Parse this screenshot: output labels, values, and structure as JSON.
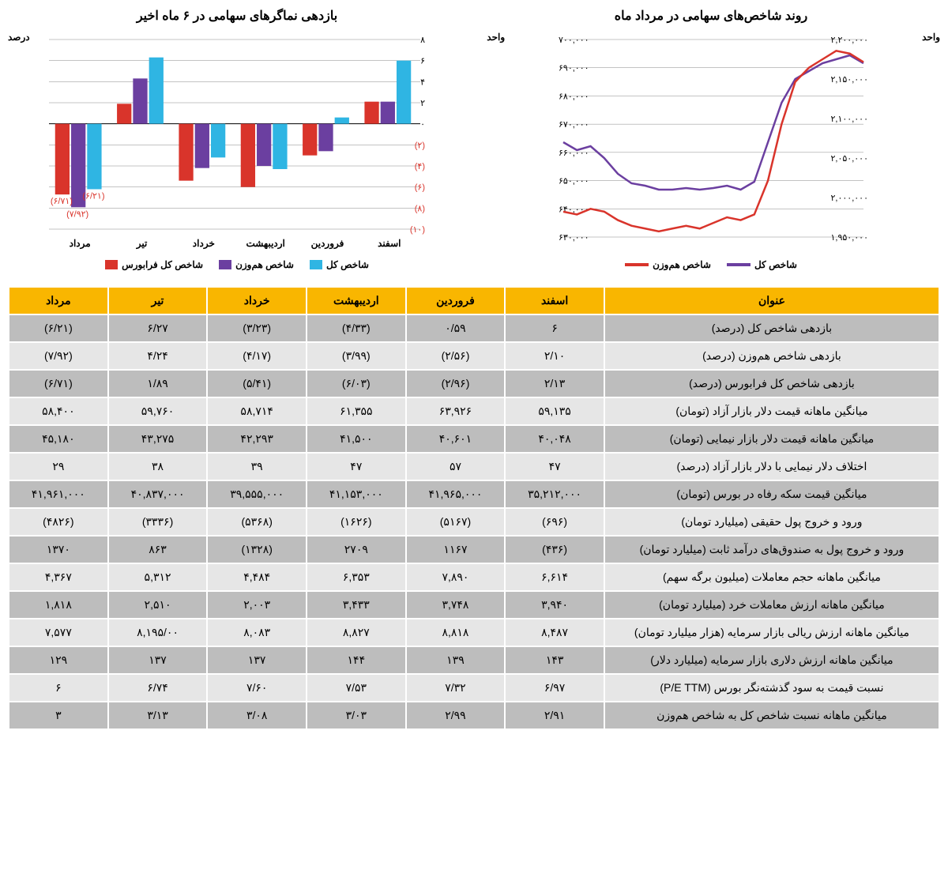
{
  "line_chart": {
    "title": "روند شاخص‌های سهامی در مرداد ماه",
    "left_axis_label": "واحد",
    "right_axis_label": "واحد",
    "right_ticks": [
      "۶۳۰,۰۰۰",
      "۶۴۰,۰۰۰",
      "۶۵۰,۰۰۰",
      "۶۶۰,۰۰۰",
      "۶۷۰,۰۰۰",
      "۶۸۰,۰۰۰",
      "۶۹۰,۰۰۰",
      "۷۰۰,۰۰۰"
    ],
    "left_ticks": [
      "۱,۹۵۰,۰۰۰",
      "۲,۰۰۰,۰۰۰",
      "۲,۰۵۰,۰۰۰",
      "۲,۱۰۰,۰۰۰",
      "۲,۱۵۰,۰۰۰",
      "۲,۲۰۰,۰۰۰"
    ],
    "right_min": 630000,
    "right_max": 700000,
    "left_min": 1950000,
    "left_max": 2200000,
    "series": [
      {
        "name": "شاخص کل",
        "color": "#6b3fa0",
        "axis": "left",
        "values": [
          2170000,
          2180000,
          2175000,
          2170000,
          2160000,
          2150000,
          2120000,
          2070000,
          2020000,
          2010000,
          2015000,
          2012000,
          2010000,
          2012000,
          2010000,
          2010000,
          2015000,
          2018000,
          2030000,
          2050000,
          2065000,
          2060000,
          2070000
        ]
      },
      {
        "name": "شاخص هم‌وزن",
        "color": "#d9342b",
        "axis": "right",
        "values": [
          692000,
          695000,
          696000,
          693000,
          690000,
          685000,
          670000,
          650000,
          638000,
          636000,
          637000,
          635000,
          633000,
          634000,
          633000,
          632000,
          633000,
          634000,
          636000,
          639000,
          640000,
          638000,
          639000
        ]
      }
    ],
    "legend": [
      {
        "label": "شاخص کل",
        "color": "#6b3fa0"
      },
      {
        "label": "شاخص هم‌وزن",
        "color": "#d9342b"
      }
    ]
  },
  "bar_chart": {
    "title": "بازدهی نماگرهای سهامی در ۶ ماه اخیر",
    "y_label": "درصد",
    "y_ticks_pos": [
      "۰",
      "۲",
      "۴",
      "۶",
      "۸"
    ],
    "y_ticks_neg": [
      "(۲)",
      "(۴)",
      "(۶)",
      "(۸)",
      "(۱۰)"
    ],
    "y_min": -10,
    "y_max": 8,
    "categories": [
      "اسفند",
      "فروردین",
      "اردیبهشت",
      "خرداد",
      "تیر",
      "مرداد"
    ],
    "series": [
      {
        "name": "شاخص کل",
        "color": "#2fb5e3",
        "values": [
          6.0,
          0.6,
          -4.3,
          -3.2,
          6.3,
          -6.21
        ]
      },
      {
        "name": "شاخص هم‌وزن",
        "color": "#6b3fa0",
        "values": [
          2.1,
          -2.6,
          -4.0,
          -4.2,
          4.3,
          -7.92
        ]
      },
      {
        "name": "شاخص کل فرابورس",
        "color": "#d9342b",
        "values": [
          2.1,
          -3.0,
          -6.0,
          -5.4,
          1.9,
          -6.71
        ]
      }
    ],
    "annotations": [
      {
        "text": "(۶/۲۱)",
        "color": "#d9342b"
      },
      {
        "text": "(۷/۹۲)",
        "color": "#d9342b"
      },
      {
        "text": "(۶/۷۱)",
        "color": "#d9342b"
      }
    ],
    "legend": [
      {
        "label": "شاخص کل",
        "color": "#2fb5e3"
      },
      {
        "label": "شاخص هم‌وزن",
        "color": "#6b3fa0"
      },
      {
        "label": "شاخص کل فرابورس",
        "color": "#d9342b"
      }
    ]
  },
  "table": {
    "header_title": "عنوان",
    "months": [
      "اسفند",
      "فروردین",
      "اردیبهشت",
      "خرداد",
      "تیر",
      "مرداد"
    ],
    "rows": [
      {
        "title": "بازدهی شاخص کل (درصد)",
        "vals": [
          "۶",
          "۰/۵۹",
          "(۴/۳۳)",
          "(۳/۲۳)",
          "۶/۲۷",
          "(۶/۲۱)"
        ]
      },
      {
        "title": "بازدهی شاخص هم‌وزن (درصد)",
        "vals": [
          "۲/۱۰",
          "(۲/۵۶)",
          "(۳/۹۹)",
          "(۴/۱۷)",
          "۴/۲۴",
          "(۷/۹۲)"
        ]
      },
      {
        "title": "بازدهی شاخص کل فرابورس (درصد)",
        "vals": [
          "۲/۱۳",
          "(۲/۹۶)",
          "(۶/۰۳)",
          "(۵/۴۱)",
          "۱/۸۹",
          "(۶/۷۱)"
        ]
      },
      {
        "title": "میانگین ماهانه قیمت دلار بازار آزاد (تومان)",
        "vals": [
          "۵۹,۱۳۵",
          "۶۳,۹۲۶",
          "۶۱,۳۵۵",
          "۵۸,۷۱۴",
          "۵۹,۷۶۰",
          "۵۸,۴۰۰"
        ]
      },
      {
        "title": "میانگین ماهانه قیمت دلار بازار نیمایی (تومان)",
        "vals": [
          "۴۰,۰۴۸",
          "۴۰,۶۰۱",
          "۴۱,۵۰۰",
          "۴۲,۲۹۳",
          "۴۳,۲۷۵",
          "۴۵,۱۸۰"
        ]
      },
      {
        "title": "اختلاف دلار نیمایی با دلار بازار آزاد (درصد)",
        "vals": [
          "۴۷",
          "۵۷",
          "۴۷",
          "۳۹",
          "۳۸",
          "۲۹"
        ]
      },
      {
        "title": "میانگین قیمت سکه رفاه در بورس (تومان)",
        "vals": [
          "۳۵,۲۱۲,۰۰۰",
          "۴۱,۹۶۵,۰۰۰",
          "۴۱,۱۵۳,۰۰۰",
          "۳۹,۵۵۵,۰۰۰",
          "۴۰,۸۳۷,۰۰۰",
          "۴۱,۹۶۱,۰۰۰"
        ]
      },
      {
        "title": "ورود و خروج پول حقیقی (میلیارد تومان)",
        "vals": [
          "(۶۹۶)",
          "(۵۱۶۷)",
          "(۱۶۲۶)",
          "(۵۳۶۸)",
          "(۳۳۳۶)",
          "(۴۸۲۶)"
        ]
      },
      {
        "title": "ورود و خروج پول به صندوق‌های درآمد ثابت (میلیارد تومان)",
        "vals": [
          "(۴۳۶)",
          "۱۱۶۷",
          "۲۷۰۹",
          "(۱۳۲۸)",
          "۸۶۳",
          "۱۳۷۰"
        ]
      },
      {
        "title": "میانگین ماهانه حجم معاملات (میلیون برگه سهم)",
        "vals": [
          "۶,۶۱۴",
          "۷,۸۹۰",
          "۶,۳۵۳",
          "۴,۴۸۴",
          "۵,۳۱۲",
          "۴,۳۶۷"
        ]
      },
      {
        "title": "میانگین ماهانه ارزش معاملات خرد (میلیارد تومان)",
        "vals": [
          "۳,۹۴۰",
          "۳,۷۴۸",
          "۳,۴۳۳",
          "۲,۰۰۳",
          "۲,۵۱۰",
          "۱,۸۱۸"
        ]
      },
      {
        "title": "میانگین ماهانه ارزش ریالی بازار سرمایه (هزار میلیارد تومان)",
        "vals": [
          "۸,۴۸۷",
          "۸,۸۱۸",
          "۸,۸۲۷",
          "۸,۰۸۳",
          "۸,۱۹۵/۰۰",
          "۷,۵۷۷"
        ]
      },
      {
        "title": "میانگین ماهانه ارزش دلاری بازار سرمایه (میلیارد دلار)",
        "vals": [
          "۱۴۳",
          "۱۳۹",
          "۱۴۴",
          "۱۳۷",
          "۱۳۷",
          "۱۲۹"
        ]
      },
      {
        "title": "نسبت قیمت به سود گذشته‌نگر بورس (P/E TTM)",
        "vals": [
          "۶/۹۷",
          "۷/۳۲",
          "۷/۵۳",
          "۷/۶۰",
          "۶/۷۴",
          "۶"
        ]
      },
      {
        "title": "میانگین ماهانه نسبت شاخص کل به شاخص هم‌وزن",
        "vals": [
          "۲/۹۱",
          "۲/۹۹",
          "۳/۰۳",
          "۳/۰۸",
          "۳/۱۳",
          "۳"
        ]
      }
    ]
  }
}
